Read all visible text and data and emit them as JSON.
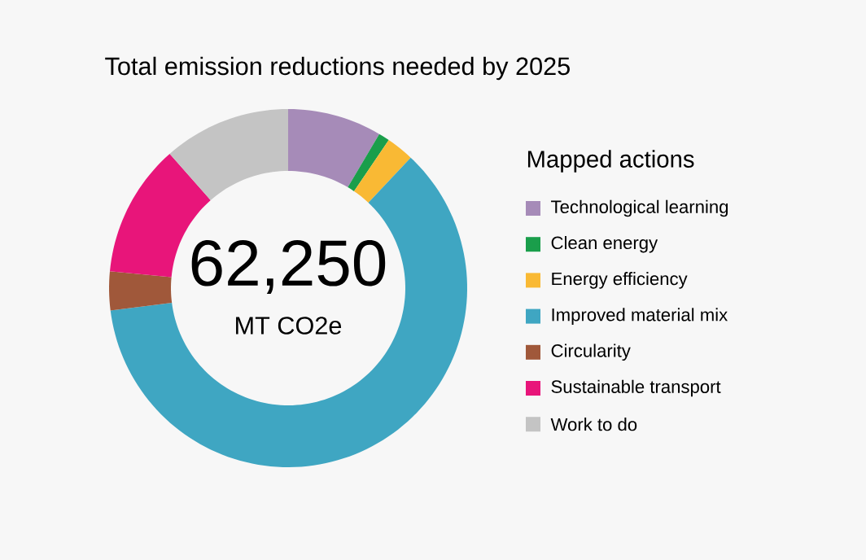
{
  "chart_data": {
    "type": "donut",
    "title": "Total emission reductions needed by 2025",
    "legend_title": "Mapped actions",
    "legend": "right",
    "categories": [
      "Technological learning",
      "Clean energy",
      "Energy efficiency",
      "Improved material mix",
      "Circularity",
      "Sustainable transport",
      "Work to do"
    ],
    "values": [
      8.5,
      1,
      2.5,
      61,
      3.5,
      12,
      11.5
    ],
    "colors": [
      "#a68bb8",
      "#1a9e4b",
      "#f9b934",
      "#3fa6c2",
      "#a0583a",
      "#e8157a",
      "#c4c4c4"
    ],
    "annotations": [
      "62,250",
      "MT CO2e"
    ]
  }
}
